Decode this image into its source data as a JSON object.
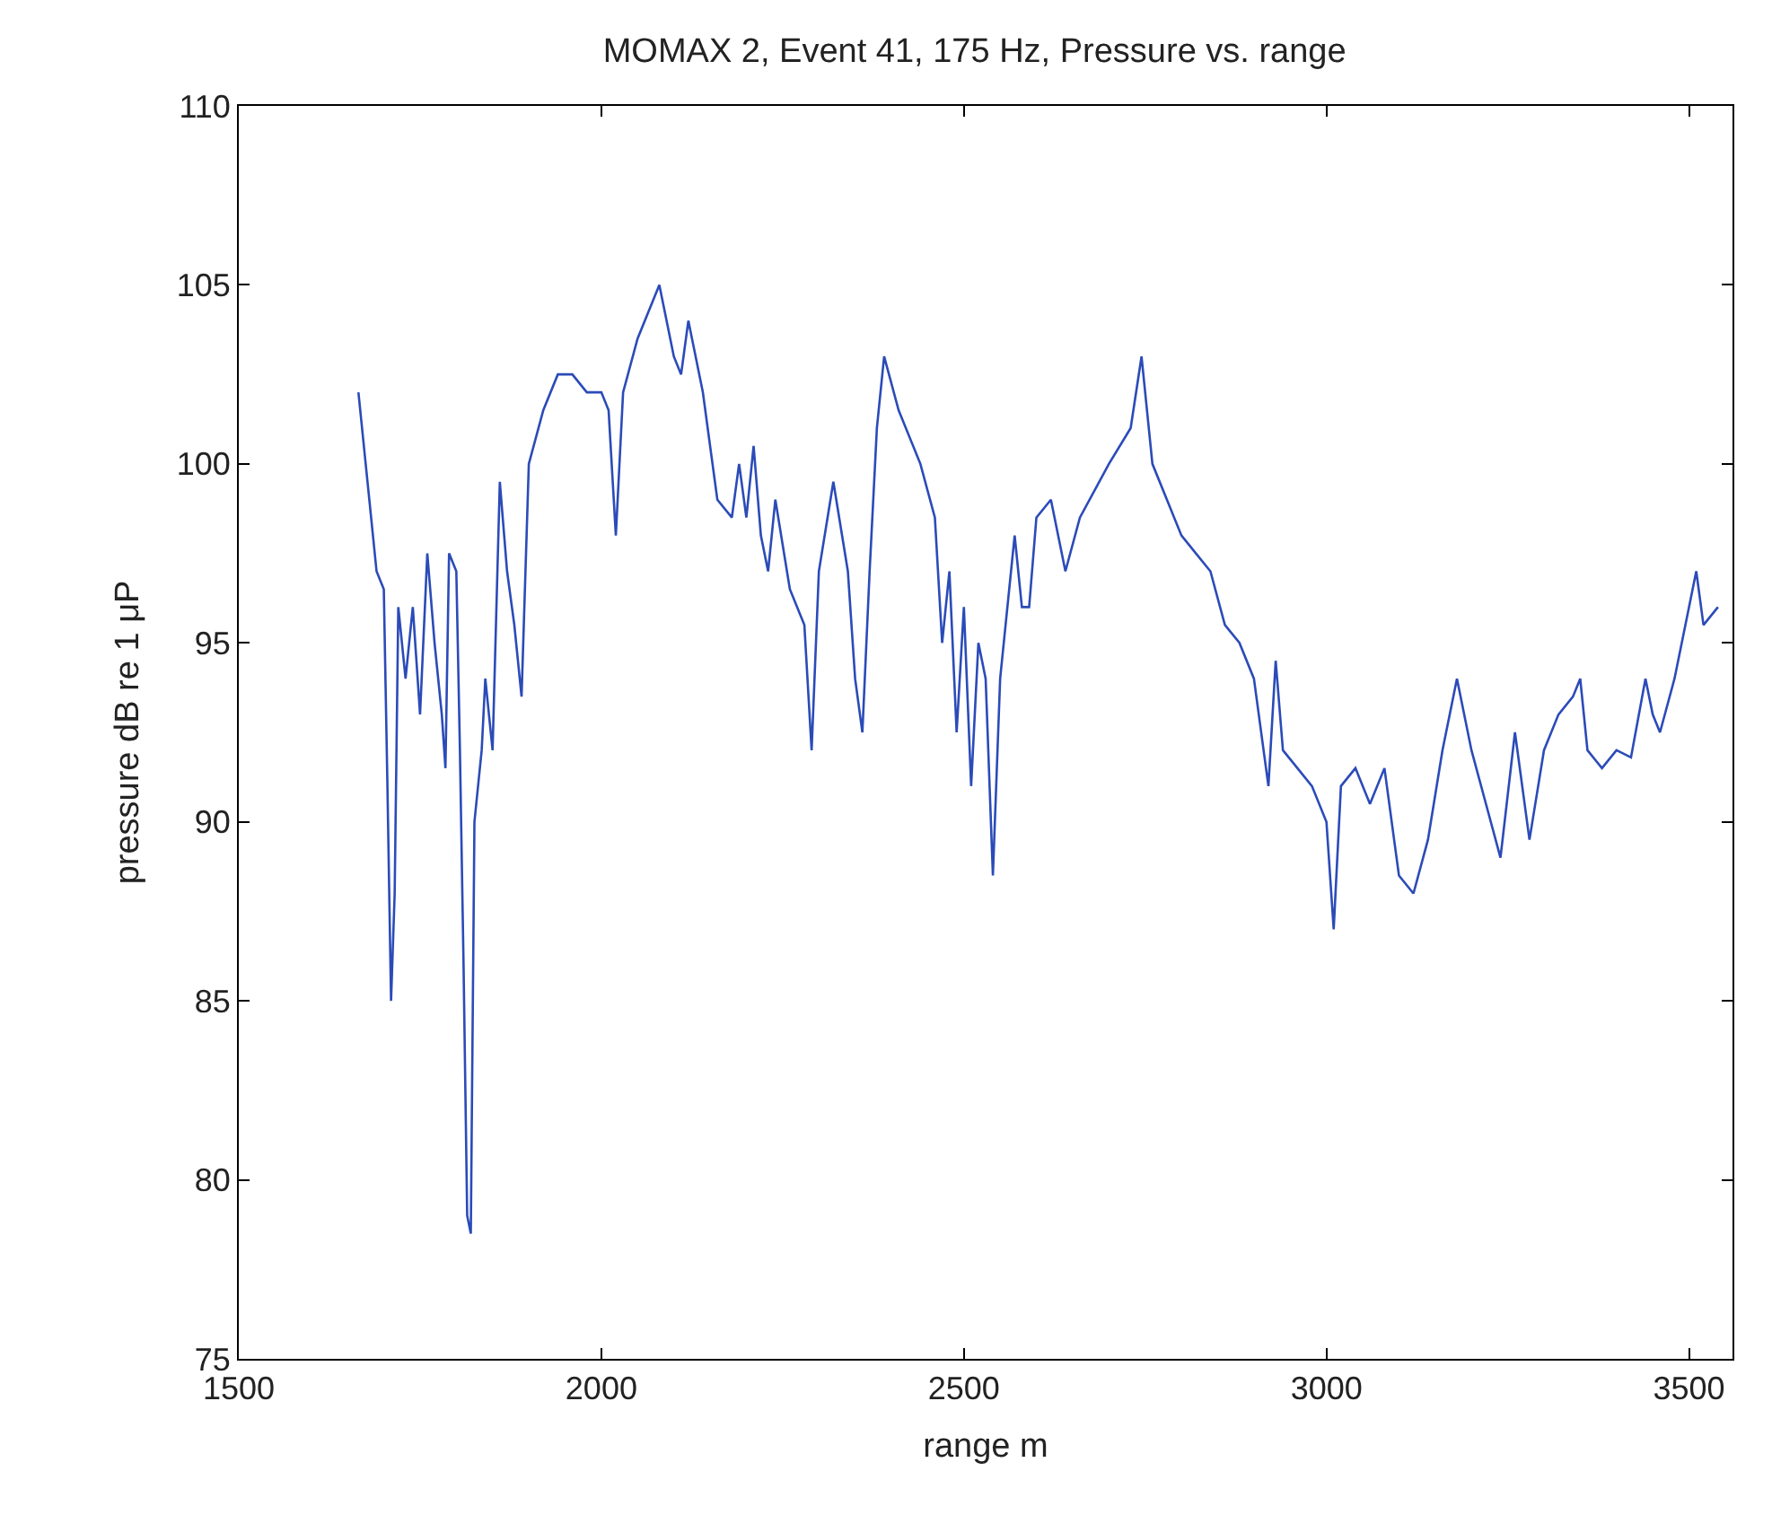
{
  "chart_data": {
    "type": "line",
    "title": "MOMAX 2, Event 41, 175 Hz, Pressure vs. range",
    "xlabel": "range m",
    "ylabel": "pressure dB re 1 μP",
    "x": [
      1665,
      1670,
      1680,
      1690,
      1700,
      1705,
      1710,
      1715,
      1720,
      1730,
      1740,
      1750,
      1760,
      1770,
      1780,
      1785,
      1790,
      1800,
      1805,
      1810,
      1815,
      1820,
      1825,
      1835,
      1840,
      1850,
      1860,
      1870,
      1880,
      1890,
      1900,
      1920,
      1940,
      1960,
      1980,
      2000,
      2010,
      2020,
      2030,
      2050,
      2080,
      2100,
      2110,
      2120,
      2140,
      2160,
      2180,
      2190,
      2200,
      2210,
      2220,
      2230,
      2240,
      2260,
      2280,
      2290,
      2300,
      2320,
      2340,
      2350,
      2360,
      2370,
      2380,
      2390,
      2410,
      2440,
      2460,
      2470,
      2480,
      2490,
      2500,
      2510,
      2520,
      2530,
      2540,
      2550,
      2570,
      2580,
      2590,
      2600,
      2620,
      2640,
      2660,
      2700,
      2730,
      2745,
      2760,
      2780,
      2800,
      2820,
      2840,
      2860,
      2880,
      2900,
      2920,
      2930,
      2940,
      2960,
      2980,
      3000,
      3010,
      3020,
      3040,
      3060,
      3080,
      3100,
      3120,
      3140,
      3160,
      3180,
      3200,
      3220,
      3240,
      3260,
      3280,
      3300,
      3320,
      3340,
      3350,
      3360,
      3380,
      3400,
      3420,
      3440,
      3450,
      3460,
      3480,
      3500,
      3510,
      3520,
      3540
    ],
    "series": [
      {
        "color": "#2b4bb8",
        "values": [
          102,
          101,
          99,
          97,
          96.5,
          91,
          85,
          88,
          96,
          94,
          96,
          93,
          97.5,
          95,
          93,
          91.5,
          97.5,
          97,
          92,
          86,
          79,
          78.5,
          90,
          92,
          94,
          92,
          99.5,
          97,
          95.5,
          93.5,
          100,
          101.5,
          102.5,
          102.5,
          102,
          102,
          101.5,
          98,
          102,
          103.5,
          105,
          103,
          102.5,
          104,
          102,
          99,
          98.5,
          100,
          98.5,
          100.5,
          98,
          97,
          99,
          96.5,
          95.5,
          92,
          97,
          99.5,
          97,
          94,
          92.5,
          97,
          101,
          103,
          101.5,
          100,
          98.5,
          95,
          97,
          92.5,
          96,
          91,
          95,
          94,
          88.5,
          94,
          98,
          96,
          96,
          98.5,
          99,
          97,
          98.5,
          100,
          101,
          103,
          100,
          99,
          98,
          97.5,
          97,
          95.5,
          95,
          94,
          91,
          94.5,
          92,
          91.5,
          91,
          90,
          87,
          91,
          91.5,
          90.5,
          91.5,
          88.5,
          88,
          89.5,
          92,
          94,
          92,
          90.5,
          89,
          92.5,
          89.5,
          92,
          93,
          93.5,
          94,
          92,
          91.5,
          92,
          91.8,
          94,
          93,
          92.5,
          94,
          96,
          97,
          95.5,
          96
        ]
      }
    ],
    "xlim": [
      1500,
      3560
    ],
    "xticks": [
      1500,
      2000,
      2500,
      3000,
      3500
    ],
    "ylim": [
      75,
      110
    ],
    "yticks": [
      75,
      80,
      85,
      90,
      95,
      100,
      105,
      110
    ],
    "legend": false,
    "marker": "none",
    "line_style": "solid"
  }
}
